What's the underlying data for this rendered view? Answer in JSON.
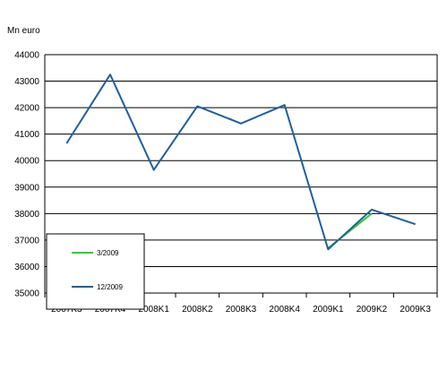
{
  "chart_data": {
    "type": "line",
    "ylabel": "Mn euro",
    "categories": [
      "2007K3",
      "2007K4",
      "2008K1",
      "2008K2",
      "2008K3",
      "2008K4",
      "2009K1",
      "2009K2",
      "2009K3"
    ],
    "ylim": [
      35000,
      44000
    ],
    "yticks": [
      35000,
      36000,
      37000,
      38000,
      39000,
      40000,
      41000,
      42000,
      43000,
      44000
    ],
    "grid": "horizontal",
    "legend_position": "bottom-left",
    "series": [
      {
        "name": "3/2009",
        "color": "#33cc33",
        "values": [
          null,
          null,
          null,
          null,
          null,
          null,
          36700,
          38000,
          null
        ]
      },
      {
        "name": "12/2009",
        "color": "#1f5fa0",
        "values": [
          40650,
          43250,
          39650,
          42050,
          41400,
          42100,
          36650,
          38150,
          37600
        ]
      }
    ]
  }
}
